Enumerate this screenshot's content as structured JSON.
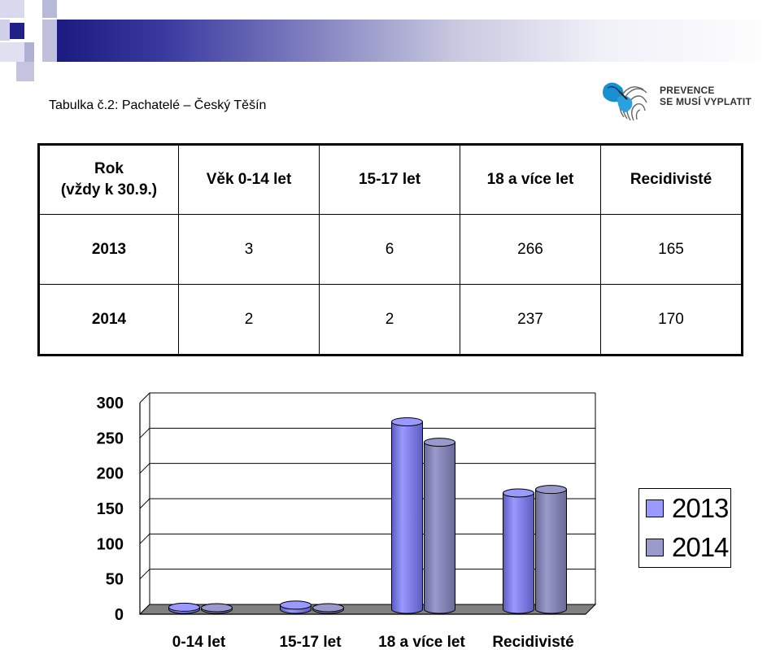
{
  "page_title": "Tabulka č.2: Pachatelé – Český Těšín",
  "logo": {
    "line1": "PREVENCE",
    "line2": "SE MUSÍ VYPLATIT",
    "icon": "butterfly-fingerprint-icon"
  },
  "table": {
    "header": {
      "rok_line1": "Rok",
      "rok_line2": "(vždy k 30.9.)",
      "cols": [
        "Věk 0-14 let",
        "15-17 let",
        "18 a více let",
        "Recidivisté"
      ]
    },
    "rows": [
      {
        "year": "2013",
        "values": [
          "3",
          "6",
          "266",
          "165"
        ]
      },
      {
        "year": "2014",
        "values": [
          "2",
          "2",
          "237",
          "170"
        ]
      }
    ]
  },
  "chart_data": {
    "type": "bar",
    "categories": [
      "0-14 let",
      "15-17 let",
      "18 a více let",
      "Recidivisté"
    ],
    "series": [
      {
        "name": "2013",
        "values": [
          3,
          6,
          266,
          165
        ]
      },
      {
        "name": "2014",
        "values": [
          2,
          2,
          237,
          170
        ]
      }
    ],
    "yticks": [
      "0",
      "50",
      "100",
      "150",
      "200",
      "250",
      "300"
    ],
    "ylim": [
      0,
      300
    ],
    "grid": true,
    "legend": "right",
    "colors": {
      "2013": "#9999ff",
      "2014": "#9999cc"
    }
  }
}
